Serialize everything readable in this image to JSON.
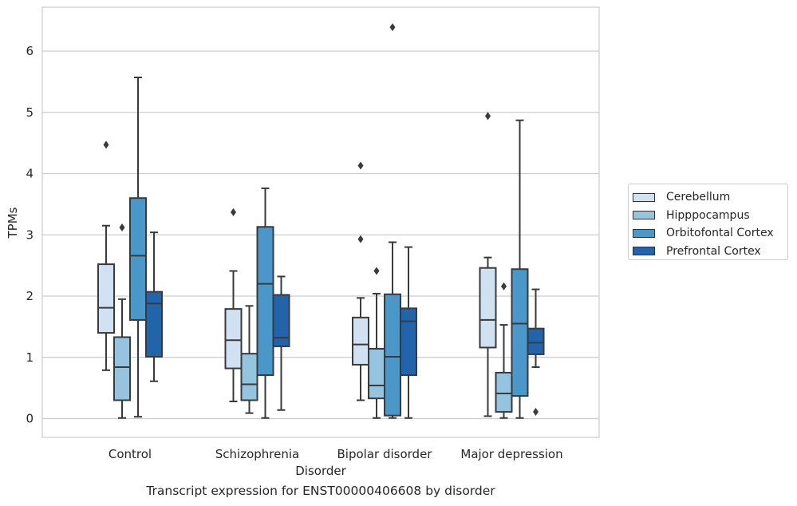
{
  "chart_data": {
    "type": "box",
    "title": "",
    "caption": "Transcript expression for ENST00000406608 by disorder",
    "xlabel": "Disorder",
    "ylabel": "TPMs",
    "ylim": [
      -0.3,
      6.7
    ],
    "yticks": [
      "0",
      "1",
      "2",
      "3",
      "4",
      "5",
      "6"
    ],
    "grid": "horizontal",
    "legend_position": "right",
    "categories": [
      "Control",
      "Schizophrenia",
      "Bipolar disorder",
      "Major depression"
    ],
    "series": [
      {
        "name": "Cerebellum",
        "color": "#d0e1f2",
        "boxes": [
          {
            "whislo": 0.79,
            "q1": 1.4,
            "med": 1.81,
            "q3": 2.52,
            "whishi": 3.15,
            "fliers": [
              4.47
            ]
          },
          {
            "whislo": 0.28,
            "q1": 0.82,
            "med": 1.28,
            "q3": 1.79,
            "whishi": 2.41,
            "fliers": [
              3.37
            ]
          },
          {
            "whislo": 0.3,
            "q1": 0.88,
            "med": 1.21,
            "q3": 1.65,
            "whishi": 1.97,
            "fliers": [
              2.93,
              4.13
            ]
          },
          {
            "whislo": 0.04,
            "q1": 1.16,
            "med": 1.61,
            "q3": 2.46,
            "whishi": 2.63,
            "fliers": [
              4.94
            ]
          }
        ]
      },
      {
        "name": "Hipppocampus",
        "color": "#94c4df",
        "boxes": [
          {
            "whislo": 0.01,
            "q1": 0.3,
            "med": 0.84,
            "q3": 1.33,
            "whishi": 1.95,
            "fliers": [
              3.12
            ]
          },
          {
            "whislo": 0.09,
            "q1": 0.3,
            "med": 0.56,
            "q3": 1.06,
            "whishi": 1.84,
            "fliers": []
          },
          {
            "whislo": 0.01,
            "q1": 0.33,
            "med": 0.54,
            "q3": 1.14,
            "whishi": 2.04,
            "fliers": [
              2.41
            ]
          },
          {
            "whislo": 0.01,
            "q1": 0.11,
            "med": 0.41,
            "q3": 0.75,
            "whishi": 1.53,
            "fliers": [
              2.16
            ]
          }
        ]
      },
      {
        "name": "Orbitofontal Cortex",
        "color": "#4a98c9",
        "boxes": [
          {
            "whislo": 0.03,
            "q1": 1.61,
            "med": 2.66,
            "q3": 3.6,
            "whishi": 5.57,
            "fliers": []
          },
          {
            "whislo": 0.01,
            "q1": 0.71,
            "med": 2.2,
            "q3": 3.13,
            "whishi": 3.76,
            "fliers": []
          },
          {
            "whislo": 0.01,
            "q1": 0.05,
            "med": 1.01,
            "q3": 2.03,
            "whishi": 2.88,
            "fliers": [
              6.39
            ]
          },
          {
            "whislo": 0.01,
            "q1": 0.37,
            "med": 1.55,
            "q3": 2.44,
            "whishi": 4.87,
            "fliers": []
          }
        ]
      },
      {
        "name": "Prefrontal Cortex",
        "color": "#2164ab",
        "boxes": [
          {
            "whislo": 0.61,
            "q1": 1.01,
            "med": 1.88,
            "q3": 2.07,
            "whishi": 3.04,
            "fliers": []
          },
          {
            "whislo": 0.14,
            "q1": 1.18,
            "med": 1.32,
            "q3": 2.02,
            "whishi": 2.32,
            "fliers": []
          },
          {
            "whislo": 0.01,
            "q1": 0.71,
            "med": 1.59,
            "q3": 1.8,
            "whishi": 2.8,
            "fliers": []
          },
          {
            "whislo": 0.84,
            "q1": 1.05,
            "med": 1.24,
            "q3": 1.47,
            "whishi": 2.11,
            "fliers": [
              0.11
            ]
          }
        ]
      }
    ]
  }
}
